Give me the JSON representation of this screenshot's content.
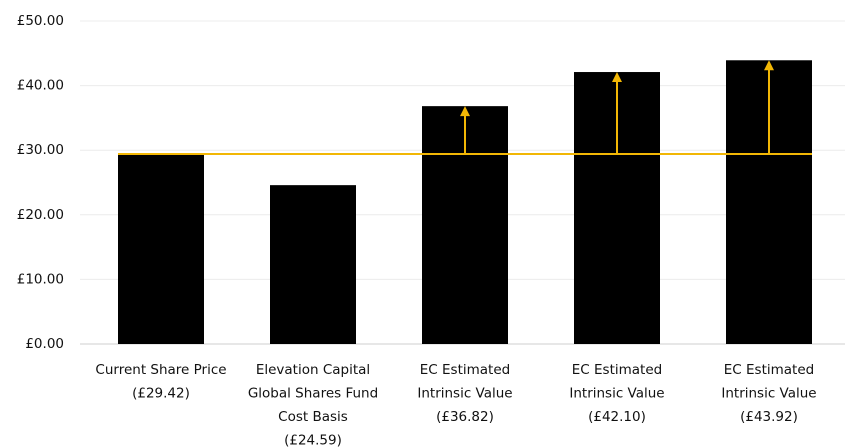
{
  "chart_data": {
    "type": "bar",
    "categories": [
      [
        "Current Share Price",
        "(£29.42)"
      ],
      [
        "Elevation Capital",
        "Global Shares Fund",
        "Cost Basis",
        "(£24.59)"
      ],
      [
        "EC Estimated",
        "Intrinsic Value",
        "(£36.82)"
      ],
      [
        "EC Estimated",
        "Intrinsic Value",
        "(£42.10)"
      ],
      [
        "EC Estimated",
        "Intrinsic Value",
        "(£43.92)"
      ]
    ],
    "values": [
      29.42,
      24.59,
      36.82,
      42.1,
      43.92
    ],
    "color": "#000000",
    "line_color": "#f2b705",
    "ylim": [
      0,
      50
    ],
    "yticks": [
      {
        "value": 0,
        "label": "£0.00"
      },
      {
        "value": 10,
        "label": "£10.00"
      },
      {
        "value": 20,
        "label": "£20.00"
      },
      {
        "value": 30,
        "label": "£30.00"
      },
      {
        "value": 40,
        "label": "£40.00"
      },
      {
        "value": 50,
        "label": "£50.00"
      }
    ],
    "grid": true
  }
}
